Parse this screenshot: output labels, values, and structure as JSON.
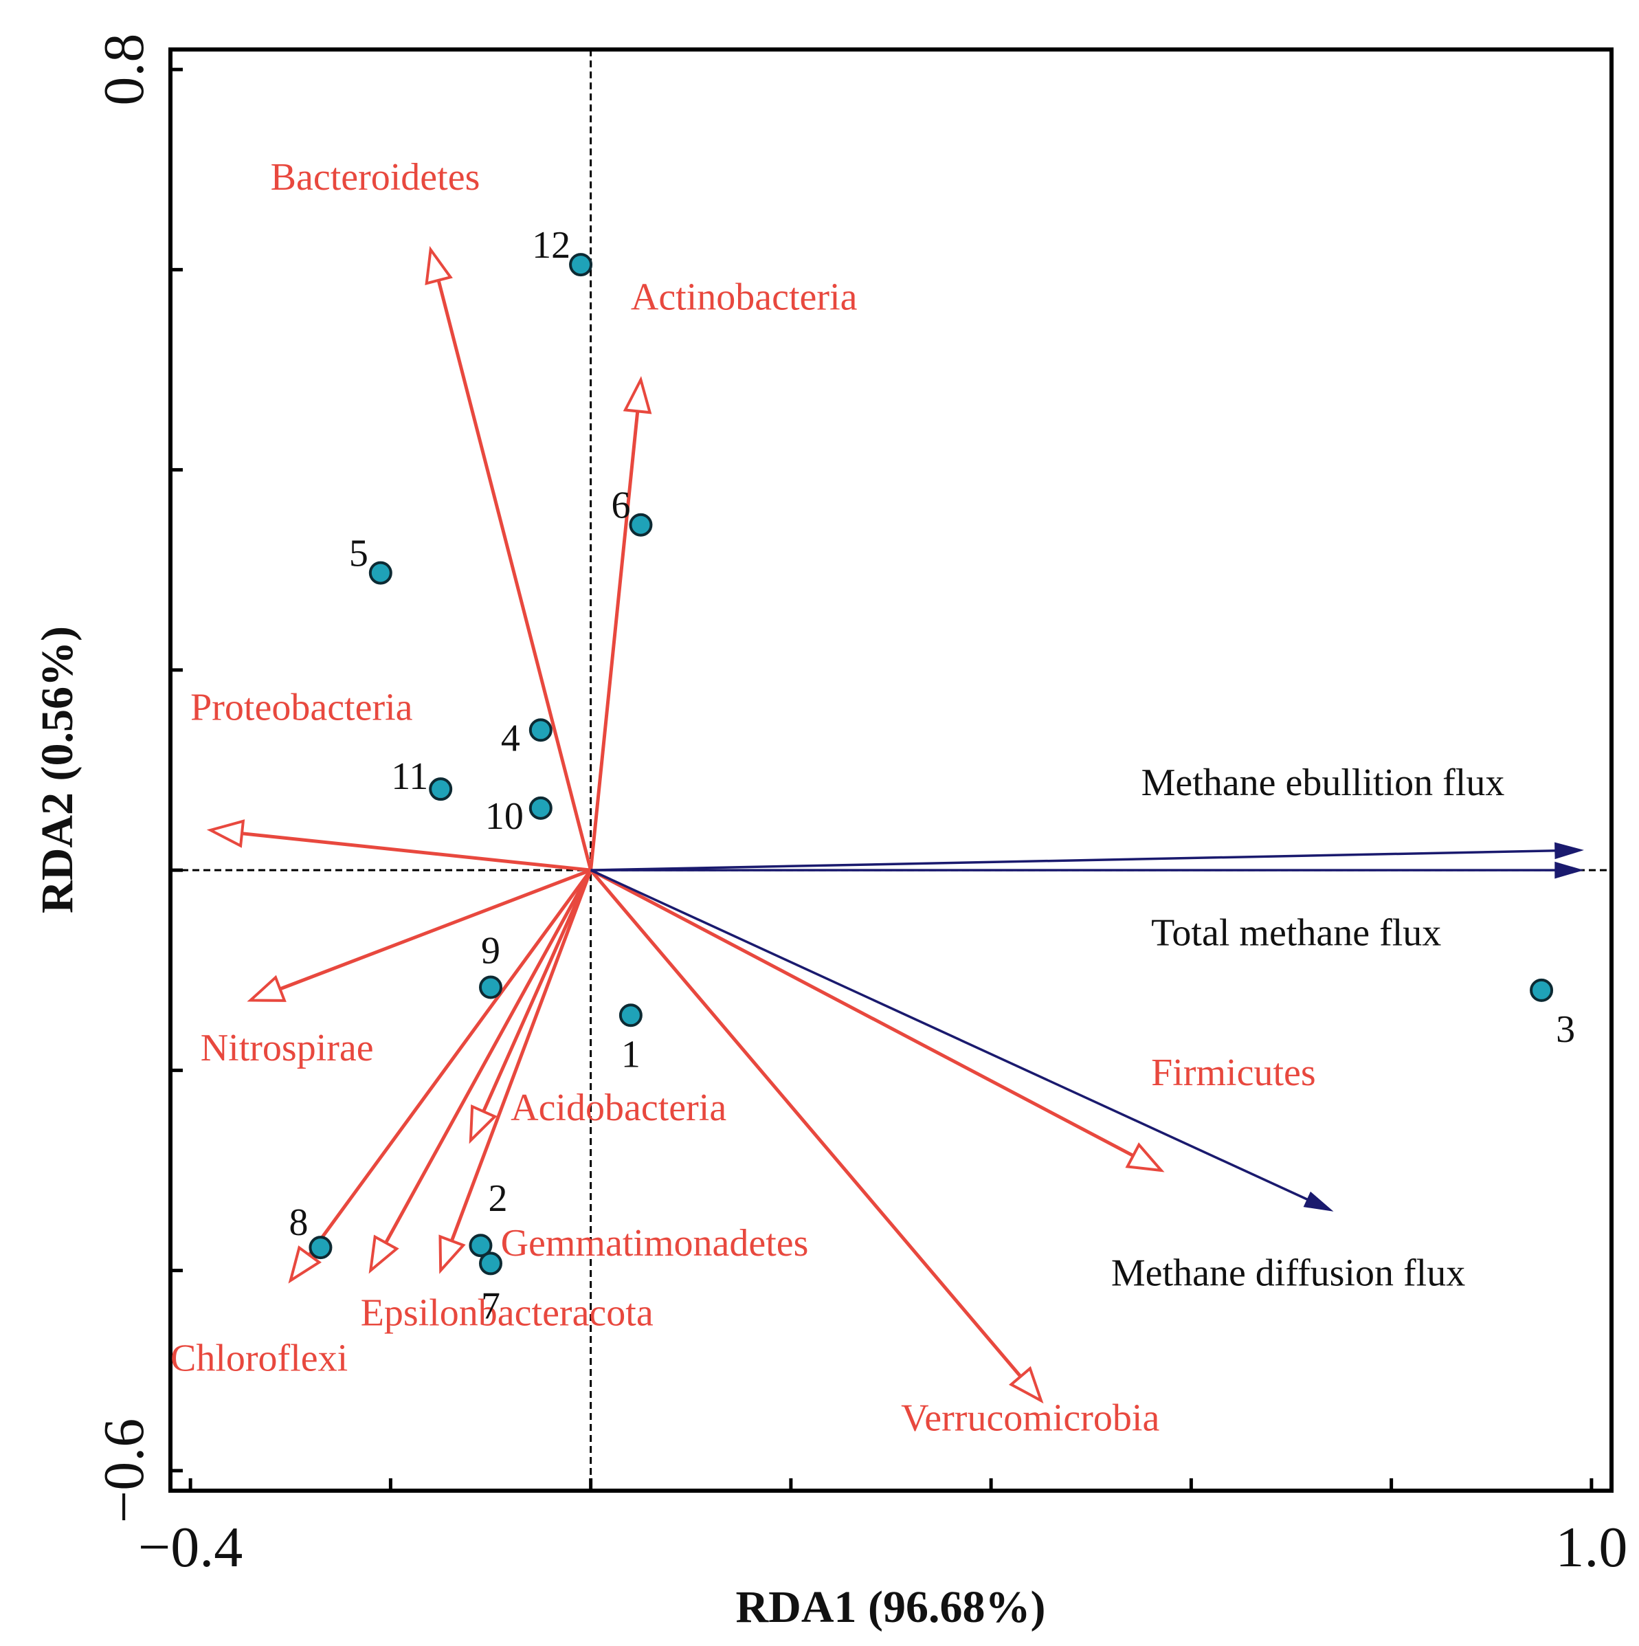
{
  "chart_data": {
    "type": "scatter",
    "subtype": "RDA triplot",
    "xlabel": "RDA1 (96.68%)",
    "ylabel": "RDA2 (0.56%)",
    "xlim": [
      -0.42,
      1.02
    ],
    "ylim": [
      -0.62,
      0.82
    ],
    "x_ticks": [
      -0.4,
      -0.2,
      0.0,
      0.2,
      0.4,
      0.6,
      0.8,
      1.0
    ],
    "y_ticks": [
      -0.6,
      -0.4,
      -0.2,
      0.0,
      0.2,
      0.4,
      0.6,
      0.8
    ],
    "x_tick_labels": [
      {
        "value": -0.4,
        "label": "−0.4"
      },
      {
        "value": 1.0,
        "label": "1.0"
      }
    ],
    "y_tick_labels": [
      {
        "value": 0.8,
        "label": "0.8"
      },
      {
        "value": -0.6,
        "label": "−0.6"
      }
    ],
    "zero_lines": true,
    "colors": {
      "species": "#e8483e",
      "environment": "#1a1a6e",
      "site_fill": "#1fa2b8",
      "site_stroke": "#0d2a33"
    },
    "species_arrows": [
      {
        "name": "Bacteroidetes",
        "x": -0.16,
        "y": 0.62,
        "label_x": -0.32,
        "label_y": 0.68
      },
      {
        "name": "Actinobacteria",
        "x": 0.05,
        "y": 0.49,
        "label_x": 0.04,
        "label_y": 0.56
      },
      {
        "name": "Proteobacteria",
        "x": -0.38,
        "y": 0.04,
        "label_x": -0.4,
        "label_y": 0.15
      },
      {
        "name": "Nitrospirae",
        "x": -0.34,
        "y": -0.13,
        "label_x": -0.39,
        "label_y": -0.19
      },
      {
        "name": "Acidobacteria",
        "x": -0.12,
        "y": -0.27,
        "label_x": -0.08,
        "label_y": -0.25
      },
      {
        "name": "Gemmatimonadetes",
        "x": -0.15,
        "y": -0.4,
        "label_x": -0.09,
        "label_y": -0.385
      },
      {
        "name": "Epsilonbacteracota",
        "x": -0.22,
        "y": -0.4,
        "label_x": -0.23,
        "label_y": -0.455
      },
      {
        "name": "Chloroflexi",
        "x": -0.3,
        "y": -0.41,
        "label_x": -0.42,
        "label_y": -0.5
      },
      {
        "name": "Firmicutes",
        "x": 0.57,
        "y": -0.3,
        "label_x": 0.56,
        "label_y": -0.215
      },
      {
        "name": "Verrucomicrobia",
        "x": 0.45,
        "y": -0.53,
        "label_x": 0.31,
        "label_y": -0.56
      }
    ],
    "env_arrows": [
      {
        "name": "Methane ebullition flux",
        "x": 0.99,
        "y": 0.02,
        "label_x": 0.55,
        "label_y": 0.075
      },
      {
        "name": "Total methane flux",
        "x": 0.99,
        "y": 0.0,
        "label_x": 0.56,
        "label_y": -0.075
      },
      {
        "name": "Methane diffusion flux",
        "x": 0.74,
        "y": -0.34,
        "label_x": 0.52,
        "label_y": -0.415
      }
    ],
    "sites": [
      {
        "id": "1",
        "x": 0.04,
        "y": -0.145
      },
      {
        "id": "2",
        "x": -0.11,
        "y": -0.375
      },
      {
        "id": "3",
        "x": 0.95,
        "y": -0.12
      },
      {
        "id": "4",
        "x": -0.05,
        "y": 0.14
      },
      {
        "id": "5",
        "x": -0.21,
        "y": 0.297
      },
      {
        "id": "6",
        "x": 0.05,
        "y": 0.345
      },
      {
        "id": "7",
        "x": -0.1,
        "y": -0.393
      },
      {
        "id": "8",
        "x": -0.27,
        "y": -0.377
      },
      {
        "id": "9",
        "x": -0.1,
        "y": -0.117
      },
      {
        "id": "10",
        "x": -0.05,
        "y": 0.062
      },
      {
        "id": "11",
        "x": -0.15,
        "y": 0.081
      },
      {
        "id": "12",
        "x": -0.01,
        "y": 0.605
      }
    ]
  }
}
